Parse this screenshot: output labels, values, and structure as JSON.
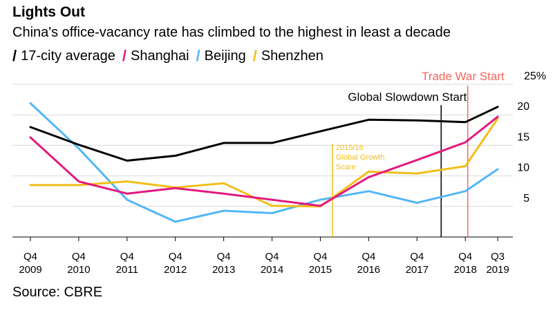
{
  "header": {
    "title": "Lights Out",
    "subtitle": "China's office-vacancy rate has climbed to the highest in least a decade"
  },
  "footer": {
    "source": "Source: CBRE"
  },
  "chart_data": {
    "type": "line",
    "title": "Lights Out",
    "subtitle": "China's office-vacancy rate has climbed to the highest in least a decade",
    "ylabel": "%",
    "ylim": [
      0,
      25
    ],
    "yticks": [
      5,
      10,
      15,
      20
    ],
    "ytick_labels": [
      "5",
      "10",
      "15",
      "20"
    ],
    "ytop_label": "25%",
    "x_positions": [
      0,
      1,
      2,
      3,
      4,
      5,
      6,
      7,
      8,
      9,
      9.67
    ],
    "xtick_labels_top": [
      "Q4",
      "Q4",
      "Q4",
      "Q4",
      "Q4",
      "Q4",
      "Q4",
      "Q4",
      "Q4",
      "Q4",
      "Q3"
    ],
    "xtick_labels_bottom": [
      "2009",
      "2010",
      "2011",
      "2012",
      "2013",
      "2014",
      "2015",
      "2016",
      "2017",
      "2018",
      "2019"
    ],
    "series": [
      {
        "name": "17-city average",
        "color": "#000000",
        "values": [
          18,
          15.1,
          12.5,
          13.3,
          15.4,
          15.4,
          17.3,
          19.2,
          19.1,
          18.8,
          21.3
        ]
      },
      {
        "name": "Shanghai",
        "color": "#e2197e",
        "values": [
          16.3,
          9.1,
          7.1,
          8,
          7.1,
          6.1,
          5.1,
          9.8,
          12.6,
          15.5,
          19.7
        ]
      },
      {
        "name": "Beijing",
        "color": "#52b6f5",
        "values": [
          21.9,
          14.5,
          6.1,
          2.5,
          4.3,
          3.9,
          6.1,
          7.5,
          5.6,
          7.5,
          11.1
        ]
      },
      {
        "name": "Shenzhen",
        "color": "#f2be19",
        "values": [
          8.5,
          8.5,
          9.1,
          8.1,
          8.8,
          5.1,
          5,
          10.7,
          10.4,
          11.6,
          19.4
        ]
      }
    ],
    "events": [
      {
        "label": "2015/16 Global Growth Scare",
        "lines": [
          "2015/16",
          "Global Growth",
          "Scare"
        ],
        "x": 6.25,
        "color": "#f2be19"
      },
      {
        "label": "Global Slowdown Start",
        "x": 8.5,
        "color": "#000000"
      },
      {
        "label": "Trade War Start",
        "x": 9.05,
        "color": "#f4655e"
      }
    ]
  }
}
